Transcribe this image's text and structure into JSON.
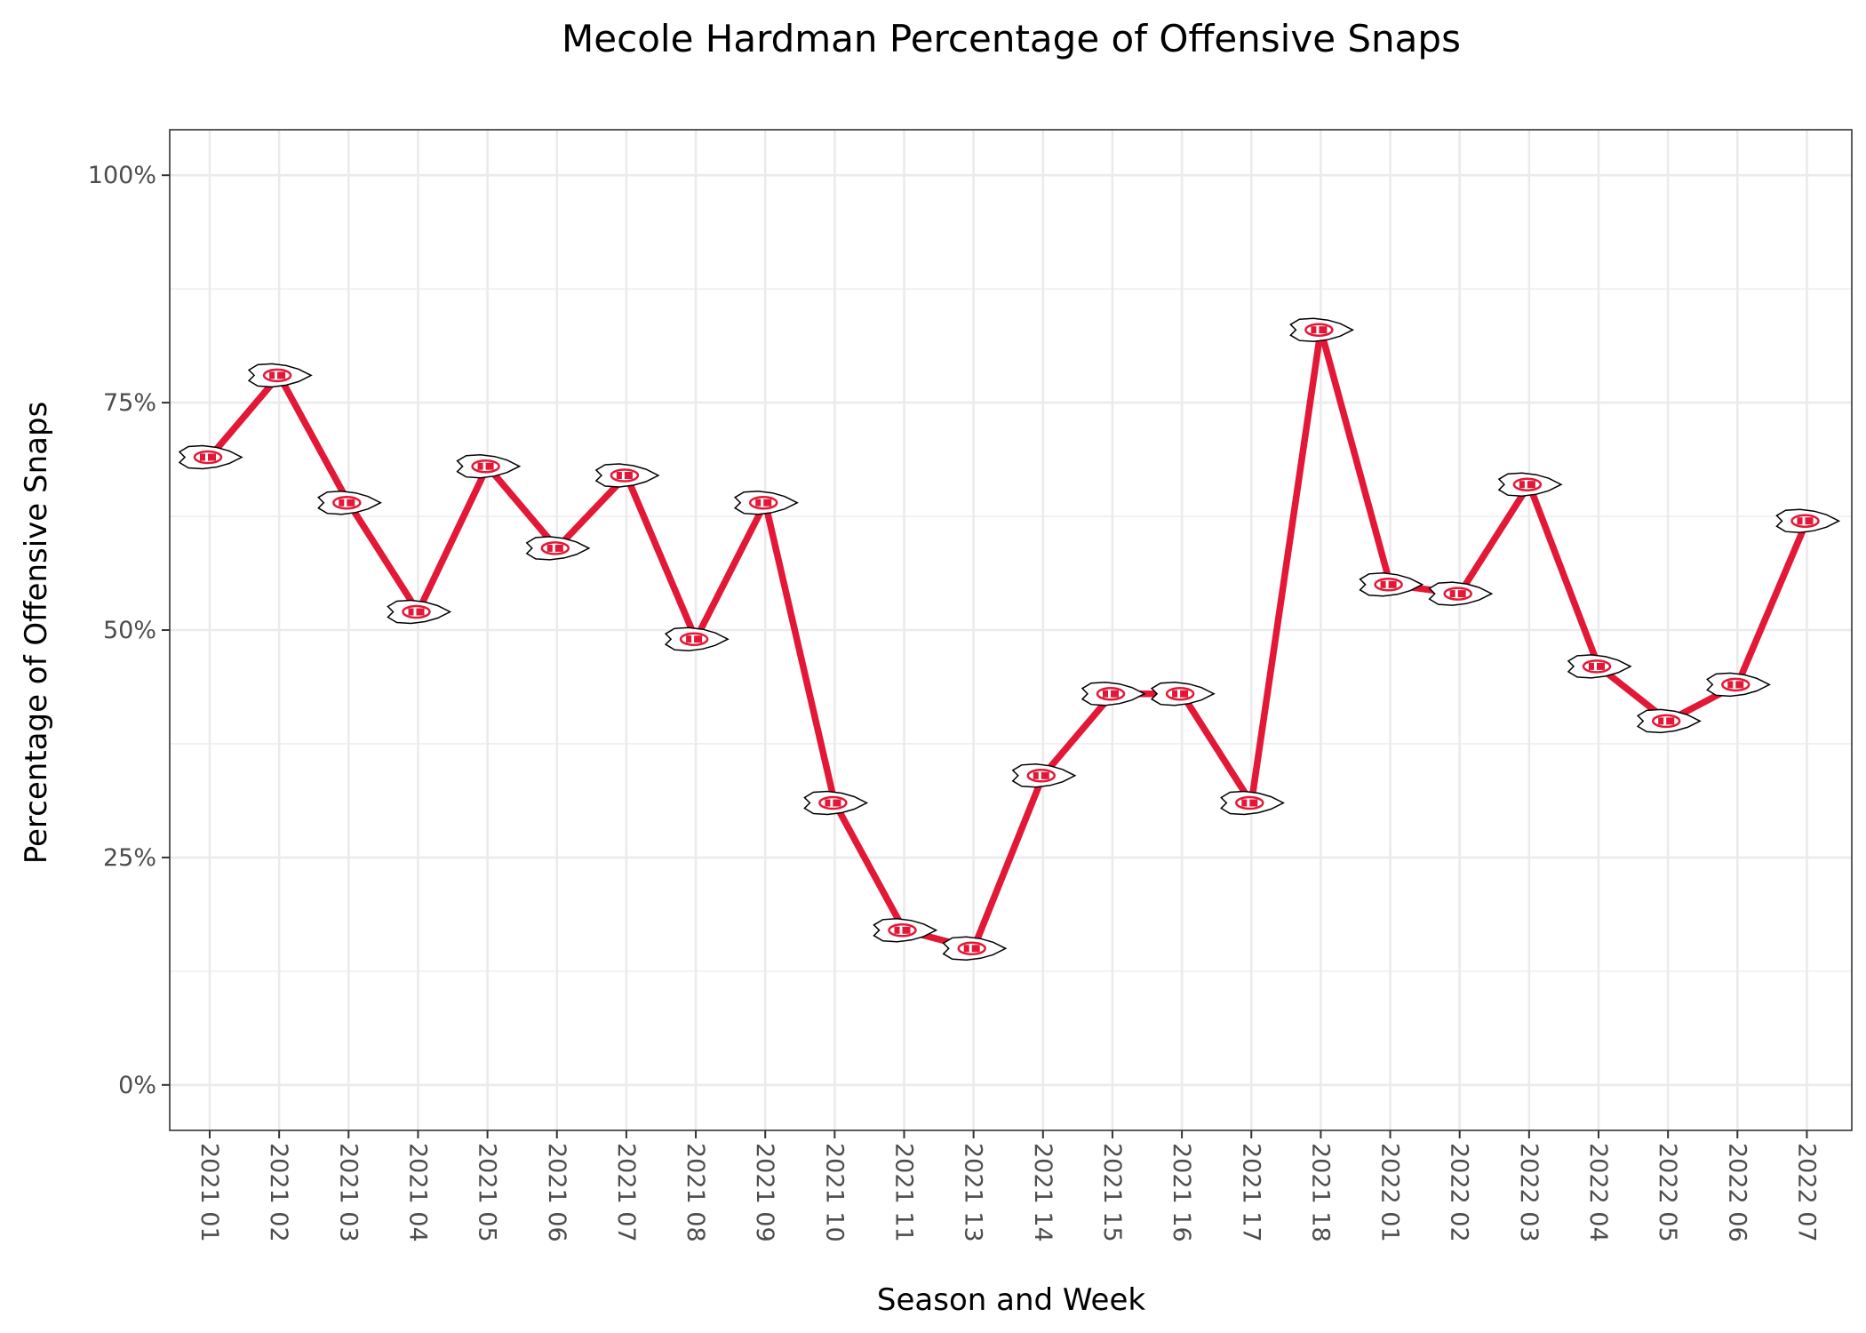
{
  "chart_data": {
    "type": "line",
    "title": "Mecole Hardman Percentage of Offensive Snaps",
    "xlabel": "Season and Week",
    "ylabel": "Percentage of Offensive Snaps",
    "categories": [
      "2021 01",
      "2021 02",
      "2021 03",
      "2021 04",
      "2021 05",
      "2021 06",
      "2021 07",
      "2021 08",
      "2021 09",
      "2021 10",
      "2021 11",
      "2021 13",
      "2021 14",
      "2021 15",
      "2021 16",
      "2021 17",
      "2021 18",
      "2022 01",
      "2022 02",
      "2022 03",
      "2022 04",
      "2022 05",
      "2022 06",
      "2022 07"
    ],
    "values": [
      69,
      78,
      64,
      52,
      68,
      59,
      67,
      49,
      64,
      31,
      17,
      15,
      34,
      43,
      43,
      31,
      83,
      55,
      54,
      66,
      46,
      40,
      44,
      62
    ],
    "y_unit": "%",
    "ylim": [
      -5,
      105
    ],
    "yticks": [
      0,
      25,
      50,
      75,
      100
    ],
    "ytick_labels": [
      "0%",
      "25%",
      "50%",
      "75%",
      "100%"
    ],
    "grid": true,
    "line_color": "#e31837",
    "marker": "kc-arrowhead-logo",
    "marker_colors": {
      "fill": "#ffffff",
      "accent": "#e31837",
      "outline": "#000000"
    }
  }
}
